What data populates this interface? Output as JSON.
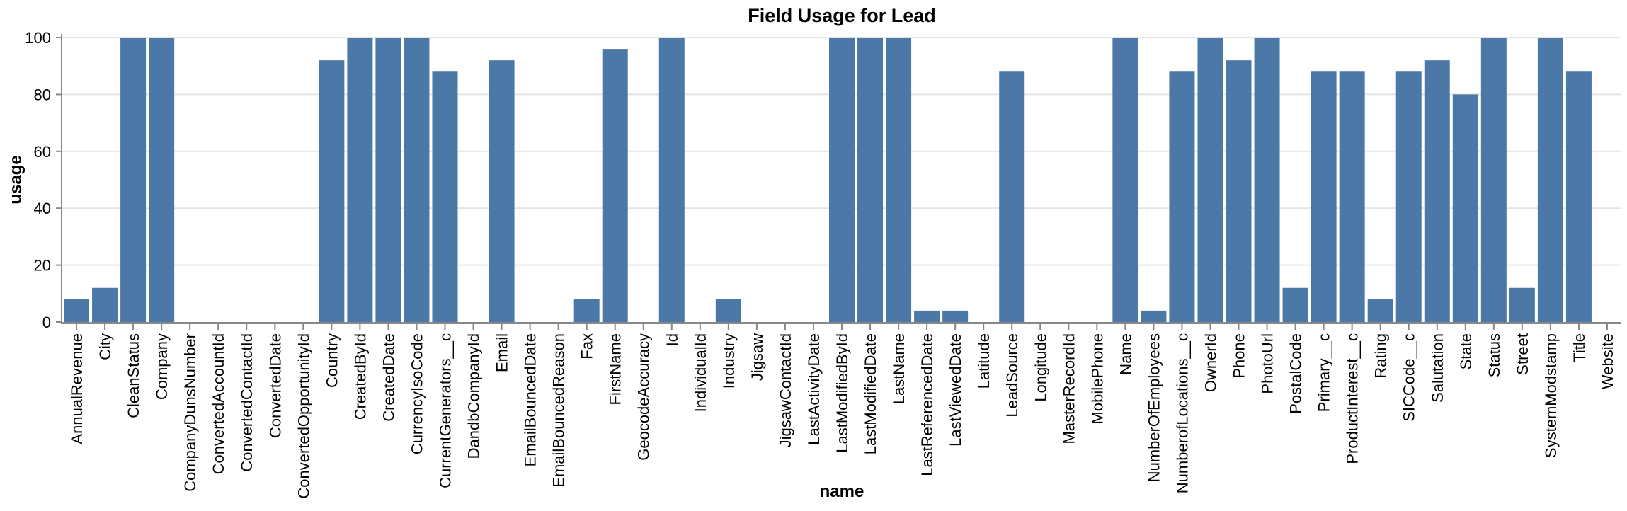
{
  "chart_data": {
    "type": "bar",
    "title": "Field Usage for Lead",
    "xlabel": "name",
    "ylabel": "usage",
    "ylim": [
      0,
      100
    ],
    "yticks": [
      0,
      20,
      40,
      60,
      80,
      100
    ],
    "grid": true,
    "legend": false,
    "colors": {
      "bar": "#4c78a8",
      "axis": "#888888",
      "grid": "#e4e4e4",
      "text": "#000000"
    },
    "categories": [
      "AnnualRevenue",
      "City",
      "CleanStatus",
      "Company",
      "CompanyDunsNumber",
      "ConvertedAccountId",
      "ConvertedContactId",
      "ConvertedDate",
      "ConvertedOpportunityId",
      "Country",
      "CreatedById",
      "CreatedDate",
      "CurrencyIsoCode",
      "CurrentGenerators__c",
      "DandbCompanyId",
      "Email",
      "EmailBouncedDate",
      "EmailBouncedReason",
      "Fax",
      "FirstName",
      "GeocodeAccuracy",
      "Id",
      "IndividualId",
      "Industry",
      "Jigsaw",
      "JigsawContactId",
      "LastActivityDate",
      "LastModifiedById",
      "LastModifiedDate",
      "LastName",
      "LastReferencedDate",
      "LastViewedDate",
      "Latitude",
      "LeadSource",
      "Longitude",
      "MasterRecordId",
      "MobilePhone",
      "Name",
      "NumberOfEmployees",
      "NumberofLocations__c",
      "OwnerId",
      "Phone",
      "PhotoUrl",
      "PostalCode",
      "Primary__c",
      "ProductInterest__c",
      "Rating",
      "SICCode__c",
      "Salutation",
      "State",
      "Status",
      "Street",
      "SystemModstamp",
      "Title",
      "Website"
    ],
    "values": [
      8,
      12,
      100,
      100,
      0,
      0,
      0,
      0,
      0,
      92,
      100,
      100,
      100,
      88,
      0,
      92,
      0,
      0,
      8,
      96,
      0,
      100,
      0,
      8,
      0,
      0,
      0,
      100,
      100,
      100,
      4,
      4,
      0,
      88,
      0,
      0,
      0,
      100,
      4,
      88,
      100,
      92,
      100,
      12,
      88,
      88,
      8,
      88,
      92,
      80,
      100,
      12,
      100,
      88,
      0
    ]
  }
}
